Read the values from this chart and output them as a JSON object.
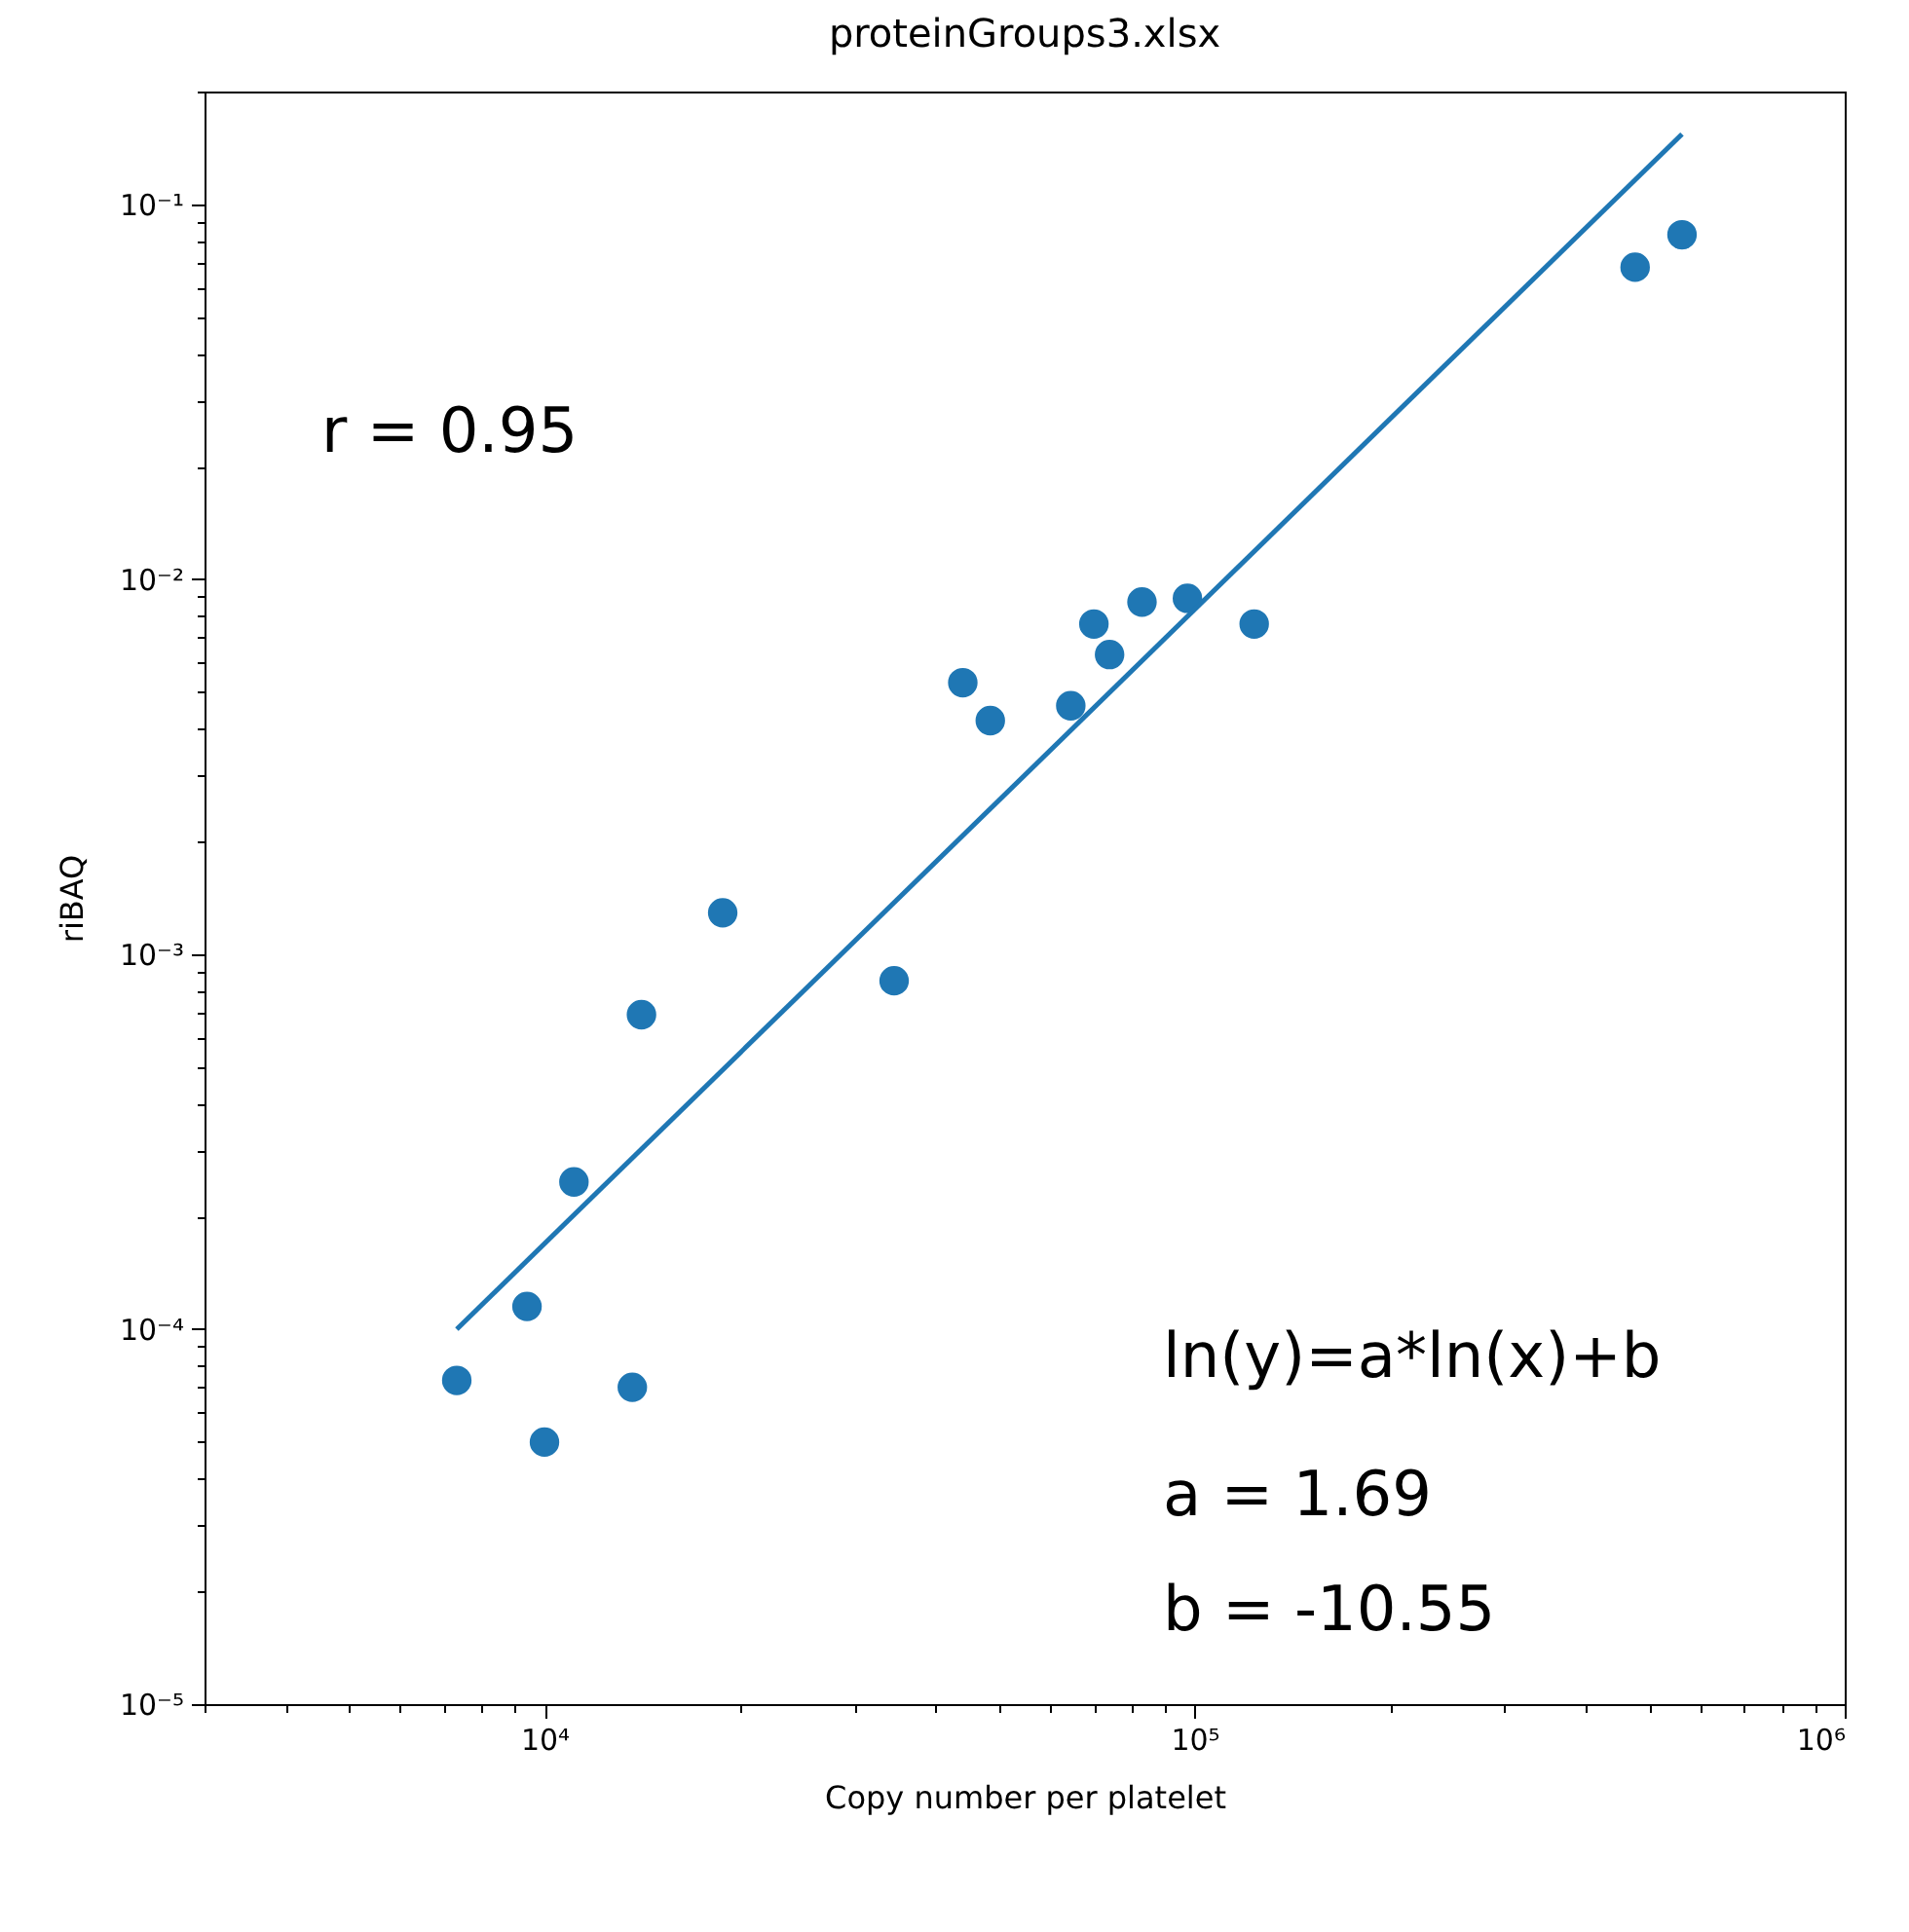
{
  "chart_data": {
    "type": "scatter",
    "title": "proteinGroups3.xlsx",
    "xlabel": "Copy number per platelet",
    "ylabel": "riBAQ",
    "log": "xy",
    "grid": false,
    "xlim": [
      3000,
      1000000
    ],
    "ylim": [
      1e-05,
      0.2
    ],
    "xticks": [
      {
        "value": 10000,
        "label": "10⁴"
      },
      {
        "value": 100000,
        "label": "10⁵"
      },
      {
        "value": 1000000,
        "label": "10⁶"
      },
      {
        "value": 3000,
        "label": null
      },
      {
        "value": 4000,
        "label": null
      },
      {
        "value": 5000,
        "label": null
      },
      {
        "value": 6000,
        "label": null
      },
      {
        "value": 7000,
        "label": null
      },
      {
        "value": 8000,
        "label": null
      },
      {
        "value": 9000,
        "label": null
      },
      {
        "value": 20000,
        "label": null
      },
      {
        "value": 30000,
        "label": null
      },
      {
        "value": 40000,
        "label": null
      },
      {
        "value": 50000,
        "label": null
      },
      {
        "value": 60000,
        "label": null
      },
      {
        "value": 70000,
        "label": null
      },
      {
        "value": 80000,
        "label": null
      },
      {
        "value": 90000,
        "label": null
      },
      {
        "value": 200000,
        "label": null
      },
      {
        "value": 300000,
        "label": null
      },
      {
        "value": 400000,
        "label": null
      },
      {
        "value": 500000,
        "label": null
      },
      {
        "value": 600000,
        "label": null
      },
      {
        "value": 700000,
        "label": null
      },
      {
        "value": 800000,
        "label": null
      },
      {
        "value": 900000,
        "label": null
      }
    ],
    "yticks": [
      {
        "value": 1e-05,
        "label": "10⁻⁵"
      },
      {
        "value": 0.0001,
        "label": "10⁻⁴"
      },
      {
        "value": 0.001,
        "label": "10⁻³"
      },
      {
        "value": 0.01,
        "label": "10⁻²"
      },
      {
        "value": 0.1,
        "label": "10⁻¹"
      },
      {
        "value": 2e-05,
        "label": null
      },
      {
        "value": 3e-05,
        "label": null
      },
      {
        "value": 4e-05,
        "label": null
      },
      {
        "value": 5e-05,
        "label": null
      },
      {
        "value": 6e-05,
        "label": null
      },
      {
        "value": 7e-05,
        "label": null
      },
      {
        "value": 8e-05,
        "label": null
      },
      {
        "value": 9e-05,
        "label": null
      },
      {
        "value": 0.0002,
        "label": null
      },
      {
        "value": 0.0003,
        "label": null
      },
      {
        "value": 0.0004,
        "label": null
      },
      {
        "value": 0.0005,
        "label": null
      },
      {
        "value": 0.0006,
        "label": null
      },
      {
        "value": 0.0007,
        "label": null
      },
      {
        "value": 0.0008,
        "label": null
      },
      {
        "value": 0.0009,
        "label": null
      },
      {
        "value": 0.002,
        "label": null
      },
      {
        "value": 0.003,
        "label": null
      },
      {
        "value": 0.004,
        "label": null
      },
      {
        "value": 0.005,
        "label": null
      },
      {
        "value": 0.006,
        "label": null
      },
      {
        "value": 0.007,
        "label": null
      },
      {
        "value": 0.008,
        "label": null
      },
      {
        "value": 0.009,
        "label": null
      },
      {
        "value": 0.02,
        "label": null
      },
      {
        "value": 0.03,
        "label": null
      },
      {
        "value": 0.04,
        "label": null
      },
      {
        "value": 0.05,
        "label": null
      },
      {
        "value": 0.06,
        "label": null
      },
      {
        "value": 0.07,
        "label": null
      },
      {
        "value": 0.08,
        "label": null
      },
      {
        "value": 0.09,
        "label": null
      },
      {
        "value": 0.2,
        "label": null
      }
    ],
    "series": [
      {
        "marker": "circle",
        "color": "#1f77b4",
        "x": [
          7330,
          9400,
          10000,
          11100,
          13650,
          14100,
          18800,
          34500,
          44000,
          48500,
          64500,
          70000,
          74000,
          83000,
          97500,
          123500,
          476000,
          562000
        ],
        "values": [
          7.3e-05,
          0.000115,
          5e-05,
          0.000247,
          7e-05,
          0.00069,
          0.00129,
          0.00085,
          0.0053,
          0.0042,
          0.0046,
          0.0076,
          0.0063,
          0.0087,
          0.0089,
          0.0076,
          0.068,
          0.083
        ]
      },
      {
        "type": "line",
        "color": "#1f77b4",
        "x": [
          7330,
          562000
        ],
        "values": [
          0.0001,
          0.154
        ]
      }
    ],
    "annotations": [
      "r = 0.95",
      "ln(y)=a*ln(x)+b",
      "a = 1.69",
      "b = -10.55"
    ]
  }
}
